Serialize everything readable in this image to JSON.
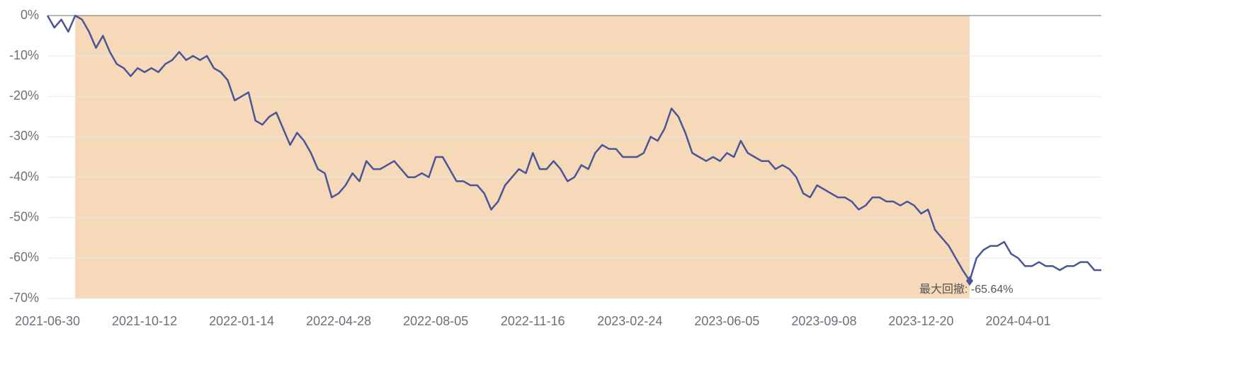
{
  "chart_data": {
    "type": "line",
    "categories": [
      "2021-06-30",
      null,
      null,
      null,
      null,
      null,
      null,
      null,
      null,
      null,
      null,
      null,
      null,
      null,
      "2021-10-12",
      null,
      null,
      null,
      null,
      null,
      null,
      null,
      null,
      null,
      null,
      null,
      null,
      null,
      "2022-01-14",
      null,
      null,
      null,
      null,
      null,
      null,
      null,
      null,
      null,
      null,
      null,
      null,
      null,
      "2022-04-28",
      null,
      null,
      null,
      null,
      null,
      null,
      null,
      null,
      null,
      null,
      null,
      null,
      null,
      "2022-08-05",
      null,
      null,
      null,
      null,
      null,
      null,
      null,
      null,
      null,
      null,
      null,
      null,
      null,
      "2022-11-16",
      null,
      null,
      null,
      null,
      null,
      null,
      null,
      null,
      null,
      null,
      null,
      null,
      null,
      "2023-02-24",
      null,
      null,
      null,
      null,
      null,
      null,
      null,
      null,
      null,
      null,
      null,
      null,
      null,
      "2023-06-05",
      null,
      null,
      null,
      null,
      null,
      null,
      null,
      null,
      null,
      null,
      null,
      null,
      null,
      "2023-09-08",
      null,
      null,
      null,
      null,
      null,
      null,
      null,
      null,
      null,
      null,
      null,
      null,
      null,
      "2023-12-20",
      null,
      null,
      null,
      null,
      null,
      null,
      null,
      null,
      null,
      null,
      null,
      null,
      null,
      "2024-04-01",
      null,
      null,
      null,
      null,
      null,
      null,
      null,
      null,
      null,
      null,
      null,
      null
    ],
    "values": [
      0,
      -3,
      -1,
      -4,
      0,
      -1,
      -4,
      -8,
      -5,
      -9,
      -12,
      -13,
      -15,
      -13,
      -14,
      -13,
      -14,
      -12,
      -11,
      -9,
      -11,
      -10,
      -11,
      -10,
      -13,
      -14,
      -16,
      -21,
      -20,
      -19,
      -26,
      -27,
      -25,
      -24,
      -28,
      -32,
      -29,
      -31,
      -34,
      -38,
      -39,
      -45,
      -44,
      -42,
      -39,
      -41,
      -36,
      -38,
      -38,
      -37,
      -36,
      -38,
      -40,
      -40,
      -39,
      -40,
      -35,
      -35,
      -38,
      -41,
      -41,
      -42,
      -42,
      -44,
      -48,
      -46,
      -42,
      -40,
      -38,
      -39,
      -34,
      -38,
      -38,
      -36,
      -38,
      -41,
      -40,
      -37,
      -38,
      -34,
      -32,
      -33,
      -33,
      -35,
      -35,
      -35,
      -34,
      -30,
      -31,
      -28,
      -23,
      -25,
      -29,
      -34,
      -35,
      -36,
      -35,
      -36,
      -34,
      -35,
      -31,
      -34,
      -35,
      -36,
      -36,
      -38,
      -37,
      -38,
      -40,
      -44,
      -45,
      -42,
      -43,
      -44,
      -45,
      -45,
      -46,
      -48,
      -47,
      -45,
      -45,
      -46,
      -46,
      -47,
      -46,
      -47,
      -49,
      -48,
      -53,
      -55,
      -57,
      -60,
      -63,
      -65.64,
      -60,
      -58,
      -57,
      -57,
      -56,
      -59,
      -60,
      -62,
      -62,
      -61,
      -62,
      -62,
      -63,
      -62,
      -62,
      -61,
      -61,
      -63,
      -63
    ],
    "color": "#4a5596",
    "highlight_color": "#f5d9b9",
    "annotation": {
      "text": "最大回撤: -65.64%"
    },
    "ylim": [
      -70,
      0
    ],
    "yticks": [
      {
        "value": 0,
        "label": "0%"
      },
      {
        "value": -10,
        "label": "-10%"
      },
      {
        "value": -20,
        "label": "-20%"
      },
      {
        "value": -30,
        "label": "-30%"
      },
      {
        "value": -40,
        "label": "-40%"
      },
      {
        "value": -50,
        "label": "-50%"
      },
      {
        "value": -60,
        "label": "-60%"
      },
      {
        "value": -70,
        "label": "-70%"
      }
    ],
    "grid": true
  }
}
